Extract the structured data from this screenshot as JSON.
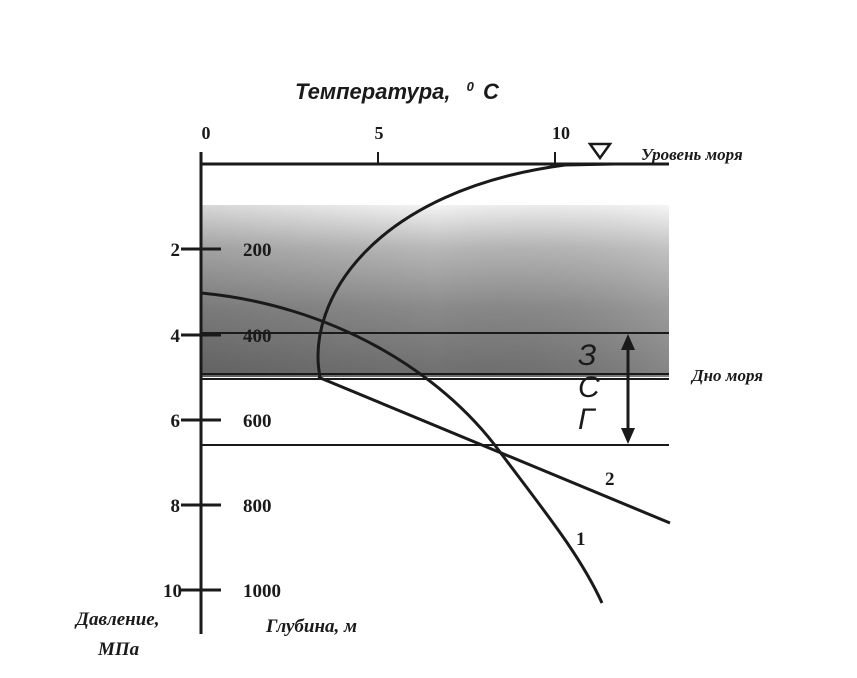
{
  "title": {
    "text": "Температура,",
    "unit_sup": "0",
    "unit": "C"
  },
  "top_axis": {
    "ticks": [
      "0",
      "5",
      "10"
    ]
  },
  "left_axis": {
    "pressure_ticks": [
      "2",
      "4",
      "6",
      "8",
      "10"
    ],
    "depth_ticks": [
      "200",
      "400",
      "600",
      "800",
      "1000"
    ],
    "pressure_label_line1": "Давление,",
    "pressure_label_line2": "МПа",
    "depth_label": "Глубина, м"
  },
  "annotations": {
    "sea_level": "Уровень моря",
    "sea_floor": "Дно моря",
    "zone_letters": [
      "З",
      "С",
      "Г"
    ],
    "curve1": "1",
    "curve2": "2"
  },
  "colors": {
    "ink": "#1a1a1a",
    "water_light": "#e2e2e2",
    "water_dark": "#6e6e6e",
    "background": "#ffffff"
  },
  "icons": {
    "sea_level_marker": "triangle-down-icon"
  }
}
